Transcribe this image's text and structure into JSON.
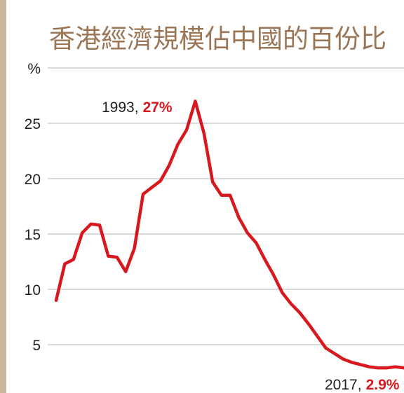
{
  "chart_data": {
    "type": "line",
    "title": "香港經濟規模佔中國的百份比",
    "x": [
      1977,
      1978,
      1979,
      1980,
      1981,
      1982,
      1983,
      1984,
      1985,
      1986,
      1987,
      1988,
      1989,
      1990,
      1991,
      1992,
      1993,
      1994,
      1995,
      1996,
      1997,
      1998,
      1999,
      2000,
      2001,
      2002,
      2003,
      2004,
      2005,
      2006,
      2007,
      2008,
      2009,
      2010,
      2011,
      2012,
      2013,
      2014,
      2015,
      2016,
      2017
    ],
    "values": [
      9.0,
      12.3,
      12.7,
      15.1,
      15.9,
      15.8,
      13.0,
      12.9,
      11.6,
      13.7,
      18.6,
      19.2,
      19.8,
      21.2,
      23.1,
      24.4,
      27.0,
      24.1,
      19.7,
      18.5,
      18.5,
      16.5,
      15.1,
      14.2,
      12.7,
      11.3,
      9.7,
      8.7,
      7.9,
      6.9,
      5.8,
      4.7,
      4.2,
      3.7,
      3.4,
      3.2,
      3.0,
      2.9,
      2.9,
      3.0,
      2.9
    ],
    "color": "#d7191f",
    "xlim": [
      1977,
      2017
    ],
    "ylim": [
      0,
      30
    ],
    "yticks": [
      0,
      5,
      10,
      15,
      20,
      25,
      {
        "value": 30,
        "label": "%"
      }
    ],
    "grid": true,
    "annotations": [
      {
        "text": "1993,",
        "highlight": "27%"
      },
      {
        "text": "2017,",
        "highlight": "2.9%"
      }
    ]
  }
}
